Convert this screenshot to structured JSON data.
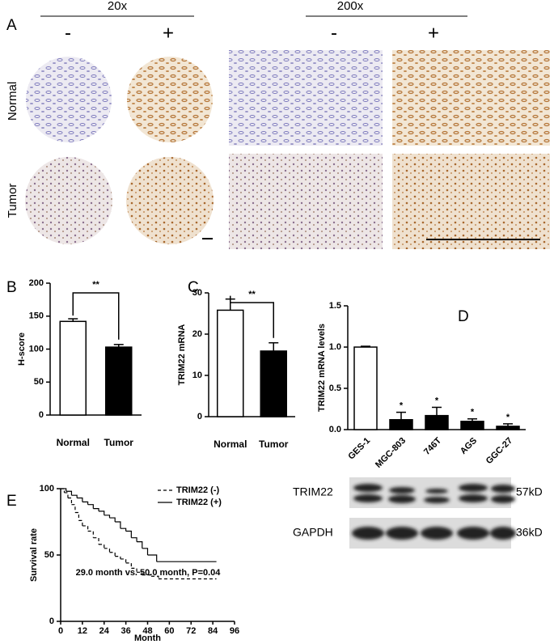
{
  "panel_a": {
    "label": "A",
    "columns": [
      {
        "title": "20x",
        "minus": "-",
        "plus": "+"
      },
      {
        "title": "200x",
        "minus": "-",
        "plus": "+"
      }
    ],
    "rows": [
      "Normal",
      "Tumor"
    ]
  },
  "chart_data": [
    {
      "type": "bar",
      "panel": "B",
      "ylabel": "H-score",
      "categories": [
        "Normal",
        "Tumor"
      ],
      "values": [
        142,
        103
      ],
      "errors": [
        4,
        4
      ],
      "colors": [
        "#ffffff",
        "#000000"
      ],
      "ylim": [
        0,
        200
      ],
      "yticks": [
        0,
        50,
        100,
        150,
        200
      ],
      "significance": "**"
    },
    {
      "type": "bar",
      "panel": "C",
      "ylabel": "TRIM22 mRNA",
      "categories": [
        "Normal",
        "Tumor"
      ],
      "values": [
        25.8,
        15.9
      ],
      "errors": [
        2.7,
        2
      ],
      "colors": [
        "#ffffff",
        "#000000"
      ],
      "ylim": [
        0,
        30
      ],
      "yticks": [
        0,
        10,
        20,
        30
      ],
      "significance": "**"
    },
    {
      "type": "bar",
      "panel": "D",
      "ylabel": "TRIM22 mRNA levels",
      "categories": [
        "GES-1",
        "MGC-803",
        "746T",
        "AGS",
        "GGC-27"
      ],
      "values": [
        1.0,
        0.12,
        0.17,
        0.1,
        0.04
      ],
      "errors": [
        0.01,
        0.09,
        0.1,
        0.03,
        0.03
      ],
      "colors": [
        "#ffffff",
        "#000000",
        "#000000",
        "#000000",
        "#000000"
      ],
      "bar_labels": [
        null,
        "*",
        "*",
        "*",
        "*"
      ],
      "ylim": [
        0,
        1.5
      ],
      "yticks": [
        {
          "value": 0,
          "label": "0.0"
        },
        0.5,
        {
          "value": 1,
          "label": "1.0"
        },
        1.5
      ]
    },
    {
      "type": "line",
      "panel": "E",
      "ylabel": "Survival rate",
      "xlabel": "Month",
      "annotation": "29.0 month vs. 50.0 month, P=0.04",
      "xlim": [
        0,
        96
      ],
      "xticks": [
        0,
        12,
        24,
        36,
        48,
        60,
        72,
        84,
        96
      ],
      "ylim": [
        0,
        100
      ],
      "yticks": [
        0,
        50,
        100
      ],
      "series": [
        {
          "name": "TRIM22 (-)",
          "color": "#000000",
          "dash": true,
          "x": [
            0,
            2,
            4,
            6,
            8,
            10,
            12,
            15,
            18,
            21,
            24,
            27,
            30,
            33,
            36,
            39,
            42,
            45,
            50,
            54,
            86
          ],
          "values": [
            100,
            97,
            93,
            88,
            82,
            76,
            72,
            68,
            63,
            58,
            55,
            52,
            49,
            47,
            44,
            40,
            37,
            35,
            34,
            32,
            32
          ]
        },
        {
          "name": "TRIM22 (+)",
          "color": "#000000",
          "dash": false,
          "x": [
            0,
            3,
            6,
            9,
            12,
            15,
            18,
            21,
            24,
            27,
            30,
            33,
            36,
            39,
            42,
            45,
            48,
            53,
            86
          ],
          "values": [
            100,
            98,
            95,
            93,
            90,
            88,
            85,
            83,
            80,
            78,
            75,
            70,
            68,
            63,
            60,
            55,
            50,
            45,
            45
          ]
        }
      ]
    }
  ],
  "blot": {
    "rows": [
      {
        "name": "TRIM22",
        "size": "57kD"
      },
      {
        "name": "GAPDH",
        "size": "36kD"
      }
    ]
  }
}
